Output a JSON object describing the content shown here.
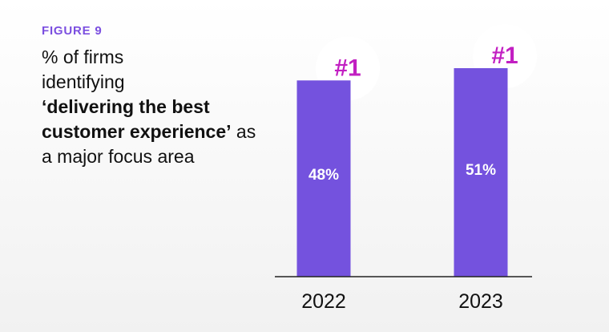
{
  "figure_label": "FIGURE 9",
  "title": {
    "line1": "% of firms",
    "line2": "identifying",
    "bold": "‘delivering the best customer experience’",
    "tail": "as a major focus area"
  },
  "colors": {
    "bar": "#7452de",
    "rank": "#c21fc2",
    "axis": "#222222"
  },
  "chart_data": {
    "type": "bar",
    "categories": [
      "2022",
      "2023"
    ],
    "values": [
      48,
      51
    ],
    "value_labels": [
      "48%",
      "51%"
    ],
    "rank_labels": [
      "#1",
      "#1"
    ],
    "xlabel": "",
    "ylabel": "",
    "ylim": [
      0,
      51
    ],
    "grid": false,
    "legend": "none"
  }
}
